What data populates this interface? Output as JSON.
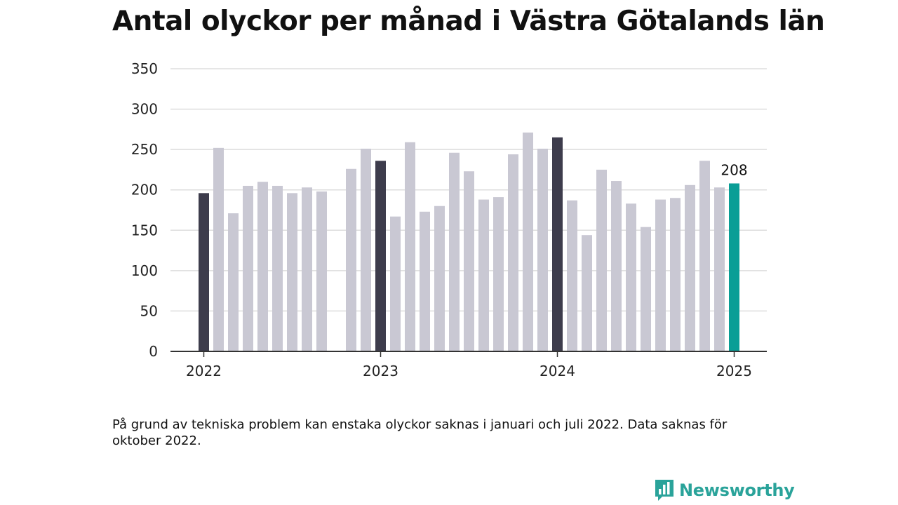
{
  "title": "Antal olyckor per månad i Västra Götalands län",
  "note": "På grund av tekniska problem kan enstaka olyckor saknas i januari och juli 2022. Data saknas för oktober 2022.",
  "brand": {
    "name": "Newsworthy",
    "icon": "newsworthy-logo-icon"
  },
  "colors": {
    "january": "#3d3c4c",
    "other": "#c9c8d3",
    "latest": "#0a9e96",
    "grid": "#dddddd",
    "axis": "#333333"
  },
  "chart_data": {
    "type": "bar",
    "title": "Antal olyckor per månad i Västra Götalands län",
    "xlabel": "",
    "ylabel": "",
    "ylim": [
      0,
      350
    ],
    "yticks": [
      0,
      50,
      100,
      150,
      200,
      250,
      300,
      350
    ],
    "xtick_labels": [
      "2022",
      "2023",
      "2024",
      "2025"
    ],
    "grid": true,
    "months": [
      "2022-01",
      "2022-02",
      "2022-03",
      "2022-04",
      "2022-05",
      "2022-06",
      "2022-07",
      "2022-08",
      "2022-09",
      "2022-10",
      "2022-11",
      "2022-12",
      "2023-01",
      "2023-02",
      "2023-03",
      "2023-04",
      "2023-05",
      "2023-06",
      "2023-07",
      "2023-08",
      "2023-09",
      "2023-10",
      "2023-11",
      "2023-12",
      "2024-01",
      "2024-02",
      "2024-03",
      "2024-04",
      "2024-05",
      "2024-06",
      "2024-07",
      "2024-08",
      "2024-09",
      "2024-10",
      "2024-11",
      "2024-12",
      "2025-01"
    ],
    "values": [
      196,
      252,
      171,
      205,
      210,
      205,
      196,
      203,
      198,
      null,
      226,
      251,
      236,
      167,
      259,
      173,
      180,
      246,
      223,
      188,
      191,
      244,
      271,
      251,
      265,
      187,
      144,
      225,
      211,
      183,
      154,
      188,
      190,
      206,
      236,
      203,
      208
    ],
    "highlight_label": "208"
  }
}
